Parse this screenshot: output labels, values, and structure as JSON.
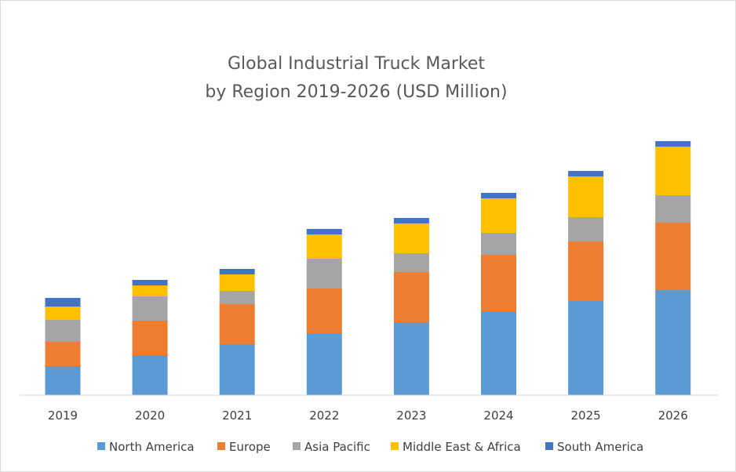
{
  "chart_data": {
    "type": "bar",
    "stacked": true,
    "title": "Global Industrial Truck Market",
    "subtitle": "by Region 2019-2026 (USD Million)",
    "xlabel": "",
    "ylabel": "",
    "ylim": [
      0,
      330
    ],
    "grid": false,
    "legend_position": "bottom",
    "categories": [
      "2019",
      "2020",
      "2021",
      "2022",
      "2023",
      "2024",
      "2025",
      "2026"
    ],
    "series": [
      {
        "name": "North America",
        "color": "#5b9bd5",
        "values": [
          37,
          51,
          65,
          79,
          93,
          106,
          120,
          134
        ]
      },
      {
        "name": "Europe",
        "color": "#ed7d31",
        "values": [
          31,
          44,
          51,
          57,
          64,
          73,
          76,
          86
        ]
      },
      {
        "name": "Asia Pacific",
        "color": "#a5a5a5",
        "values": [
          28,
          31,
          17,
          38,
          24,
          28,
          31,
          35
        ]
      },
      {
        "name": "Middle East & Africa",
        "color": "#ffc000",
        "values": [
          17,
          14,
          21,
          31,
          38,
          44,
          52,
          62
        ]
      },
      {
        "name": "South America",
        "color": "#4472c4",
        "values": [
          11,
          7,
          7,
          7,
          7,
          7,
          7,
          7
        ]
      }
    ]
  }
}
